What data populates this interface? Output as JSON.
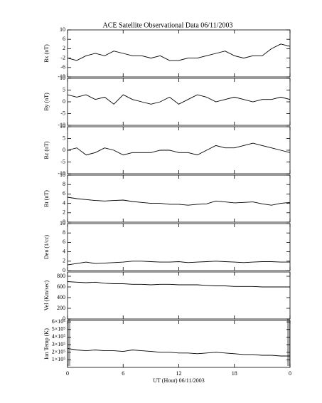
{
  "chart_data": [
    {
      "type": "line",
      "title": "ACE Satellite Observational Data   06/11/2003",
      "ylabel": "Bx (nT)",
      "color": "#000000",
      "x": [
        0,
        1,
        2,
        3,
        4,
        5,
        6,
        7,
        8,
        9,
        10,
        11,
        12,
        13,
        14,
        15,
        16,
        17,
        18,
        19,
        20,
        21,
        22,
        23,
        24
      ],
      "values": [
        -2,
        -3,
        -1,
        0,
        -1,
        1,
        0,
        -1,
        -1,
        -2,
        -1,
        -3,
        -3,
        -2,
        -2,
        -1,
        0,
        1,
        -1,
        -2,
        -1,
        -1,
        2,
        4,
        3
      ],
      "xlim": [
        0,
        24
      ],
      "xticks": [
        0,
        6,
        12,
        18,
        24
      ],
      "ylim": [
        -10,
        10
      ],
      "yticks": [
        -10,
        -6,
        -2,
        2,
        6,
        10
      ]
    },
    {
      "type": "line",
      "ylabel": "By (nT)",
      "color": "#000000",
      "x": [
        0,
        1,
        2,
        3,
        4,
        5,
        6,
        7,
        8,
        9,
        10,
        11,
        12,
        13,
        14,
        15,
        16,
        17,
        18,
        19,
        20,
        21,
        22,
        23,
        24
      ],
      "values": [
        3,
        2,
        3,
        1,
        2,
        -1,
        3,
        1,
        0,
        -1,
        0,
        2,
        -1,
        1,
        3,
        2,
        0,
        1,
        2,
        1,
        0,
        1,
        1,
        2,
        1
      ],
      "xlim": [
        0,
        24
      ],
      "xticks": [
        0,
        6,
        12,
        18,
        24
      ],
      "ylim": [
        -10,
        10
      ],
      "yticks": [
        -10,
        -5,
        0,
        5,
        10
      ]
    },
    {
      "type": "line",
      "ylabel": "Bz (nT)",
      "color": "#000000",
      "x": [
        0,
        1,
        2,
        3,
        4,
        5,
        6,
        7,
        8,
        9,
        10,
        11,
        12,
        13,
        14,
        15,
        16,
        17,
        18,
        19,
        20,
        21,
        22,
        23,
        24
      ],
      "values": [
        0,
        1,
        -2,
        -1,
        1,
        0,
        -2,
        -1,
        -1,
        -1,
        0,
        0,
        -1,
        -1,
        -2,
        0,
        2,
        1,
        1,
        2,
        3,
        2,
        1,
        0,
        -1
      ],
      "xlim": [
        0,
        24
      ],
      "xticks": [
        0,
        6,
        12,
        18,
        24
      ],
      "ylim": [
        -10,
        10
      ],
      "yticks": [
        -10,
        -5,
        0,
        5,
        10
      ]
    },
    {
      "type": "line",
      "ylabel": "Bt (nT)",
      "color": "#000000",
      "x": [
        0,
        1,
        2,
        3,
        4,
        5,
        6,
        7,
        8,
        9,
        10,
        11,
        12,
        13,
        14,
        15,
        16,
        17,
        18,
        19,
        20,
        21,
        22,
        23,
        24
      ],
      "values": [
        5.3,
        5,
        4.8,
        4.6,
        4.5,
        4.6,
        4.7,
        4.4,
        4.2,
        4,
        4,
        3.8,
        3.8,
        3.6,
        3.8,
        3.9,
        4.5,
        4.3,
        4.1,
        4.2,
        4.3,
        3.9,
        3.6,
        4,
        4.2
      ],
      "xlim": [
        0,
        24
      ],
      "xticks": [
        0,
        6,
        12,
        18,
        24
      ],
      "ylim": [
        0,
        10
      ],
      "yticks": [
        0,
        2,
        4,
        6,
        8,
        10
      ]
    },
    {
      "type": "line",
      "ylabel": "Den (1/cc)",
      "color": "#000000",
      "x": [
        0,
        1,
        2,
        3,
        4,
        5,
        6,
        7,
        8,
        9,
        10,
        11,
        12,
        13,
        14,
        15,
        16,
        17,
        18,
        19,
        20,
        21,
        22,
        23,
        24
      ],
      "values": [
        1.2,
        1.5,
        1.8,
        1.5,
        1.6,
        1.7,
        1.8,
        2,
        2,
        1.9,
        1.8,
        1.8,
        1.9,
        1.7,
        1.8,
        1.9,
        2,
        1.9,
        1.8,
        1.7,
        1.8,
        1.9,
        1.9,
        1.8,
        1.8
      ],
      "xlim": [
        0,
        24
      ],
      "xticks": [
        0,
        6,
        12,
        18,
        24
      ],
      "ylim": [
        0,
        10
      ],
      "yticks": [
        0,
        2,
        4,
        6,
        8,
        10
      ]
    },
    {
      "type": "line",
      "ylabel": "Vel (Km/sec)",
      "color": "#000000",
      "x": [
        0,
        1,
        2,
        3,
        4,
        5,
        6,
        7,
        8,
        9,
        10,
        11,
        12,
        13,
        14,
        15,
        16,
        17,
        18,
        19,
        20,
        21,
        22,
        23,
        24
      ],
      "values": [
        700,
        690,
        680,
        690,
        670,
        660,
        660,
        650,
        650,
        640,
        650,
        650,
        640,
        640,
        640,
        630,
        620,
        620,
        610,
        610,
        610,
        600,
        600,
        600,
        600
      ],
      "xlim": [
        0,
        24
      ],
      "xticks": [
        0,
        6,
        12,
        18,
        24
      ],
      "ylim": [
        0,
        880
      ],
      "yticks": [
        0,
        200,
        400,
        600,
        800
      ]
    },
    {
      "type": "line",
      "ylabel": "Ion Temp (K)",
      "xlabel": "UT (Hour)  06/11/2003",
      "color": "#000000",
      "x": [
        0,
        1,
        2,
        3,
        4,
        5,
        6,
        7,
        8,
        9,
        10,
        11,
        12,
        13,
        14,
        15,
        16,
        17,
        18,
        19,
        20,
        21,
        22,
        23,
        24
      ],
      "values": [
        250000,
        230000,
        220000,
        230000,
        220000,
        220000,
        210000,
        230000,
        220000,
        210000,
        200000,
        200000,
        190000,
        190000,
        180000,
        190000,
        200000,
        190000,
        180000,
        170000,
        170000,
        160000,
        160000,
        150000,
        150000
      ],
      "xlim": [
        0,
        24
      ],
      "xticks": [
        0,
        6,
        12,
        18,
        {
          "value": 24,
          "label": "0"
        }
      ],
      "ylim": [
        0,
        620000
      ],
      "yticks": [
        {
          "value": 100000,
          "label": "1×10⁵"
        },
        {
          "value": 200000,
          "label": "2×10⁵"
        },
        {
          "value": 300000,
          "label": "3×10⁵"
        },
        {
          "value": 400000,
          "label": "4×10⁵"
        },
        {
          "value": 500000,
          "label": "5×10⁵"
        },
        {
          "value": 600000,
          "label": "6×10⁵"
        }
      ]
    }
  ]
}
